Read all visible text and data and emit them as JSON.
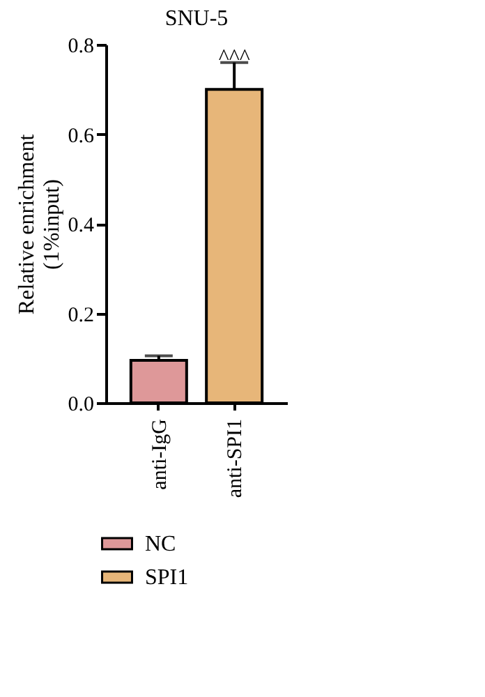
{
  "chart_data": {
    "type": "bar",
    "title": "SNU-5",
    "ylabel": "Relative enrichment\n(1%input)",
    "categories": [
      "anti-IgG",
      "anti-SPI1"
    ],
    "series": [
      {
        "name": "NC",
        "color": "#de9899",
        "values": [
          0.095,
          null
        ],
        "errors": [
          0.01,
          null
        ]
      },
      {
        "name": "SPI1",
        "color": "#e7b679",
        "values": [
          null,
          0.7
        ],
        "errors": [
          null,
          0.06
        ]
      }
    ],
    "ylim": [
      0,
      0.8
    ],
    "yticks": [
      {
        "value": 0,
        "label": "0.0"
      },
      {
        "value": 0.2,
        "label": "0.2"
      },
      {
        "value": 0.4,
        "label": "0.4"
      },
      {
        "value": 0.6,
        "label": "0.6"
      },
      {
        "value": 0.8,
        "label": "0.8"
      }
    ],
    "grid": false,
    "legend": "bottom",
    "annotations": [
      {
        "text": "^^^",
        "x": "anti-SPI1",
        "y": 0.76
      }
    ]
  }
}
